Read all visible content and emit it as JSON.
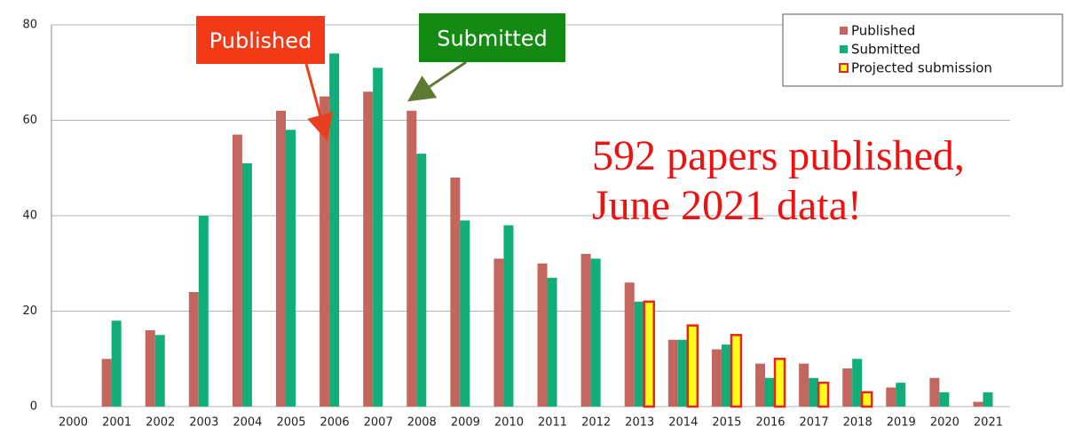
{
  "chart_data": {
    "type": "bar",
    "categories": [
      "2000",
      "2001",
      "2002",
      "2003",
      "2004",
      "2005",
      "2006",
      "2007",
      "2008",
      "2009",
      "2010",
      "2011",
      "2012",
      "2013",
      "2014",
      "2015",
      "2016",
      "2017",
      "2018",
      "2019",
      "2020",
      "2021"
    ],
    "series": [
      {
        "name": "Published",
        "color": "#c2665e",
        "values": [
          null,
          10,
          16,
          24,
          57,
          62,
          65,
          66,
          62,
          48,
          31,
          30,
          32,
          26,
          14,
          12,
          9,
          9,
          8,
          4,
          6,
          1
        ]
      },
      {
        "name": "Submitted",
        "color": "#12ae79",
        "values": [
          null,
          18,
          15,
          40,
          51,
          58,
          74,
          71,
          53,
          39,
          38,
          27,
          31,
          22,
          14,
          13,
          6,
          6,
          10,
          5,
          3,
          3
        ]
      },
      {
        "name": "Projected submission",
        "color": "#ffff1a",
        "edge_color": "#e8251c",
        "values": [
          null,
          null,
          null,
          null,
          null,
          null,
          null,
          null,
          null,
          null,
          null,
          null,
          null,
          22,
          17,
          15,
          10,
          5,
          3,
          null,
          null,
          null
        ]
      }
    ],
    "ylim": [
      0,
      80
    ],
    "yticks": [
      0,
      20,
      40,
      60,
      80
    ],
    "grid": true,
    "legend": "upper right",
    "annotations": [
      {
        "text": "Published",
        "color": "#f23a17"
      },
      {
        "text": "Submitted",
        "color": "#138a12"
      }
    ],
    "callout": [
      "592 papers published,",
      "June 2021 data!"
    ]
  }
}
